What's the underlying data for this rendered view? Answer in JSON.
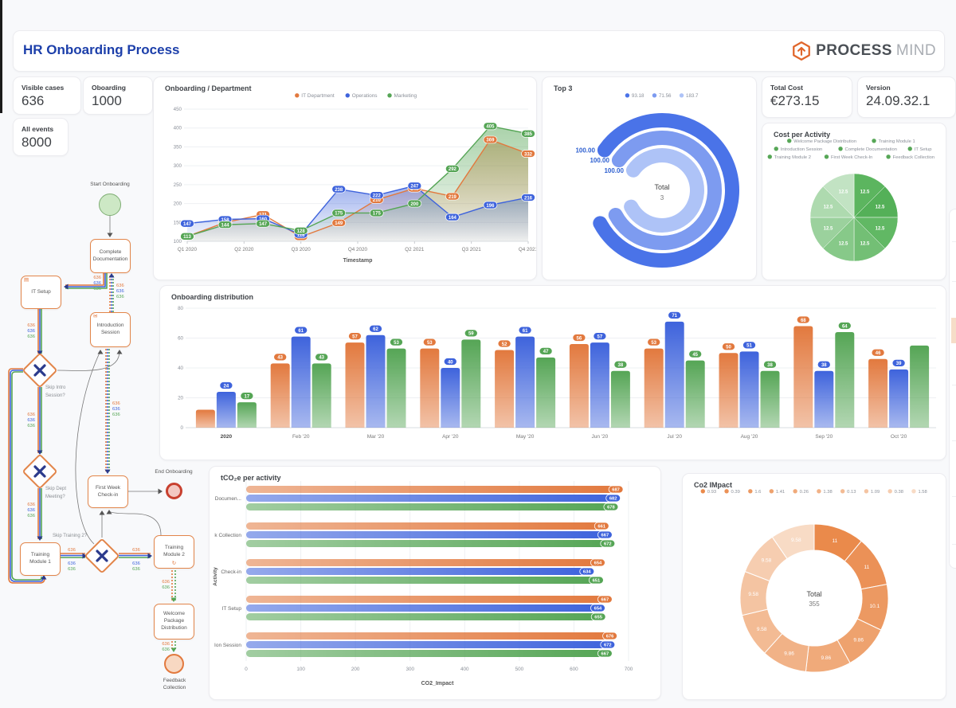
{
  "header": {
    "title": "HR Onboarding Process",
    "logo_process": "PROCESS",
    "logo_mind": "MIND",
    "brand_orange": "#e0662b"
  },
  "kpis": {
    "visible_cases": {
      "label": "Visible cases",
      "value": "636"
    },
    "oboarding": {
      "label": "Oboarding",
      "value": "1000"
    },
    "all_events": {
      "label": "All events",
      "value": "8000"
    },
    "total_cost": {
      "label": "Total Cost",
      "value": "€273.15"
    },
    "version": {
      "label": "Version",
      "value": "24.09.32.1"
    }
  },
  "flow": {
    "start_label": "Start Onboarding",
    "end_label": "End Onboarding",
    "edge_count": "636",
    "colors": {
      "orange": "#e2793e",
      "blue": "#3e63dc",
      "green": "#55a555",
      "gateway_x": "#2b3a8c"
    },
    "nodes": {
      "complete_documentation": [
        "Complete",
        "Documentation"
      ],
      "it_setup": [
        "IT Setup"
      ],
      "introduction_session": [
        "Introduction",
        "Session"
      ],
      "first_week_check_in": [
        "First Week",
        "Check-in"
      ],
      "training_module_1": [
        "Training",
        "Module 1"
      ],
      "training_module_2": [
        "Training",
        "Module 2"
      ],
      "welcome_package_distribution": [
        "Welcome",
        "Package",
        "Distribution"
      ],
      "feedback_collection": [
        "Feedback",
        "Collection"
      ]
    },
    "gateway_labels": {
      "skip_intro": [
        "Skip Intro",
        "Session?"
      ],
      "skip_dept": [
        "Skip Dept",
        "Meeting?"
      ],
      "skip_training": [
        "Skip Training 2?"
      ]
    }
  },
  "chart_data": [
    {
      "id": "dept",
      "type": "area",
      "title": "Onboarding / Department",
      "xlabel": "Timestamp",
      "x_tick_labels": [
        "Q1 2020",
        "Q2 2020",
        "Q3 2020",
        "Q4 2020",
        "Q2 2021",
        "Q3 2021",
        "Q4 2021"
      ],
      "ylim": [
        100,
        450
      ],
      "yticks": [
        100,
        150,
        200,
        250,
        300,
        350,
        400,
        450
      ],
      "series": [
        {
          "name": "IT Department",
          "color": "#e2793e",
          "values": [
            113,
            150,
            171,
            112,
            149,
            210,
            240,
            219,
            369,
            332
          ]
        },
        {
          "name": "Operations",
          "color": "#3e63dc",
          "values": [
            147,
            158,
            160,
            118,
            238,
            222,
            247,
            164,
            196,
            216
          ]
        },
        {
          "name": "Marketing",
          "color": "#55a555",
          "values": [
            113,
            144,
            147,
            128,
            175,
            175,
            200,
            292,
            405,
            385
          ]
        }
      ]
    },
    {
      "id": "top3",
      "type": "radial_bar",
      "title": "Top 3",
      "legend": [
        {
          "label": "93.18",
          "color": "#4a73e8"
        },
        {
          "label": "71.56",
          "color": "#7d9bf0"
        },
        {
          "label": "183.7",
          "color": "#aec3f7"
        }
      ],
      "values": [
        100,
        100,
        100
      ],
      "value_labels": [
        "100.00",
        "100.00",
        "100.00"
      ],
      "colors": [
        "#4a73e8",
        "#7d9bf0",
        "#aec3f7"
      ],
      "center_label": "Total",
      "center_value": "3"
    },
    {
      "id": "cost",
      "type": "pie",
      "title": "Cost per Activity",
      "legend_rows": [
        [
          "Welcome Package Distribution",
          "Training Module 1"
        ],
        [
          "Introduction Session",
          "Complete Documentation",
          "IT Setup"
        ],
        [
          "Training Module 2",
          "First Week Check-In",
          "Feedback Collection"
        ]
      ],
      "legend_colors": [
        "#54b058",
        "#5cb55f",
        "#61b864",
        "#73bf75",
        "#87c989",
        "#9bd19d",
        "#aedaaf",
        "#c2e3c3"
      ],
      "values": [
        12.5,
        12.5,
        12.5,
        12.5,
        12.5,
        12.5,
        12.5,
        12.5
      ],
      "slice_label": "12.5",
      "colors": [
        "#5cb55f",
        "#54b058",
        "#61b864",
        "#73bf75",
        "#87c989",
        "#9bd19d",
        "#aedaaf",
        "#c2e3c3"
      ]
    },
    {
      "id": "dist",
      "type": "bar",
      "title": "Onboarding distribution",
      "categories": [
        "2020",
        "Feb '20",
        "Mar '20",
        "Apr '20",
        "May '20",
        "Jun '20",
        "Jul '20",
        "Aug '20",
        "Sep '20",
        "Oct '20"
      ],
      "yticks": [
        0,
        20,
        40,
        60,
        80
      ],
      "series": [
        {
          "name": "IT Department",
          "color": "#e2793e",
          "values": [
            12,
            43,
            57,
            53,
            52,
            56,
            53,
            50,
            68,
            46
          ],
          "labels": [
            null,
            "43",
            "57",
            "53",
            "52",
            "56",
            "53",
            "50",
            "68",
            "46"
          ]
        },
        {
          "name": "Operations",
          "color": "#3e63dc",
          "values": [
            24,
            61,
            62,
            40,
            61,
            57,
            71,
            51,
            38,
            39
          ],
          "labels": [
            "24",
            "61",
            "62",
            "40",
            "61",
            "57",
            "71",
            "51",
            "38",
            "39"
          ]
        },
        {
          "name": "Marketing",
          "color": "#55a555",
          "values": [
            17,
            43,
            53,
            59,
            47,
            38,
            45,
            38,
            64,
            55
          ],
          "labels": [
            "17",
            "43",
            "53",
            "59",
            "47",
            "38",
            "45",
            "38",
            "64",
            null
          ]
        }
      ]
    },
    {
      "id": "tco2",
      "type": "hbar",
      "title": "tCO₂e per activity",
      "xlabel": "CO2_Impact",
      "ylabel": "Activity",
      "categories": [
        "Documen...",
        "k Collection",
        "Check-in",
        "IT Setup",
        "Ion Session"
      ],
      "xticks": [
        0,
        100,
        200,
        300,
        400,
        500,
        600,
        700
      ],
      "series": [
        {
          "color": "#e2793e",
          "values": [
            687,
            661,
            654,
            667,
            676
          ]
        },
        {
          "color": "#3e63dc",
          "values": [
            682,
            667,
            634,
            654,
            672
          ]
        },
        {
          "color": "#55a555",
          "values": [
            678,
            672,
            651,
            655,
            667
          ]
        }
      ]
    },
    {
      "id": "co2",
      "type": "donut",
      "title": "Co2 IMpact",
      "legend": [
        "0.93",
        "0.39",
        "1.6",
        "1.41",
        "0.26",
        "1.38",
        "0.13",
        "1.09",
        "0.38",
        "1.58"
      ],
      "values": [
        11,
        11,
        10.1,
        9.86,
        9.86,
        9.86,
        9.58,
        9.58,
        9.58,
        9.58
      ],
      "slice_labels": [
        "11",
        "11",
        "10.1",
        "9.86",
        "9.86",
        "9.86",
        "9.58",
        "9.58",
        "9.58",
        "9.58"
      ],
      "colors": [
        "#ea8a4b",
        "#eb9157",
        "#ec9962",
        "#eea26e",
        "#f0aa7a",
        "#f1b287",
        "#f3bb94",
        "#f4c4a2",
        "#f6cdb0",
        "#f8dbc5"
      ],
      "center_label": "Total",
      "center_value": "355"
    }
  ]
}
